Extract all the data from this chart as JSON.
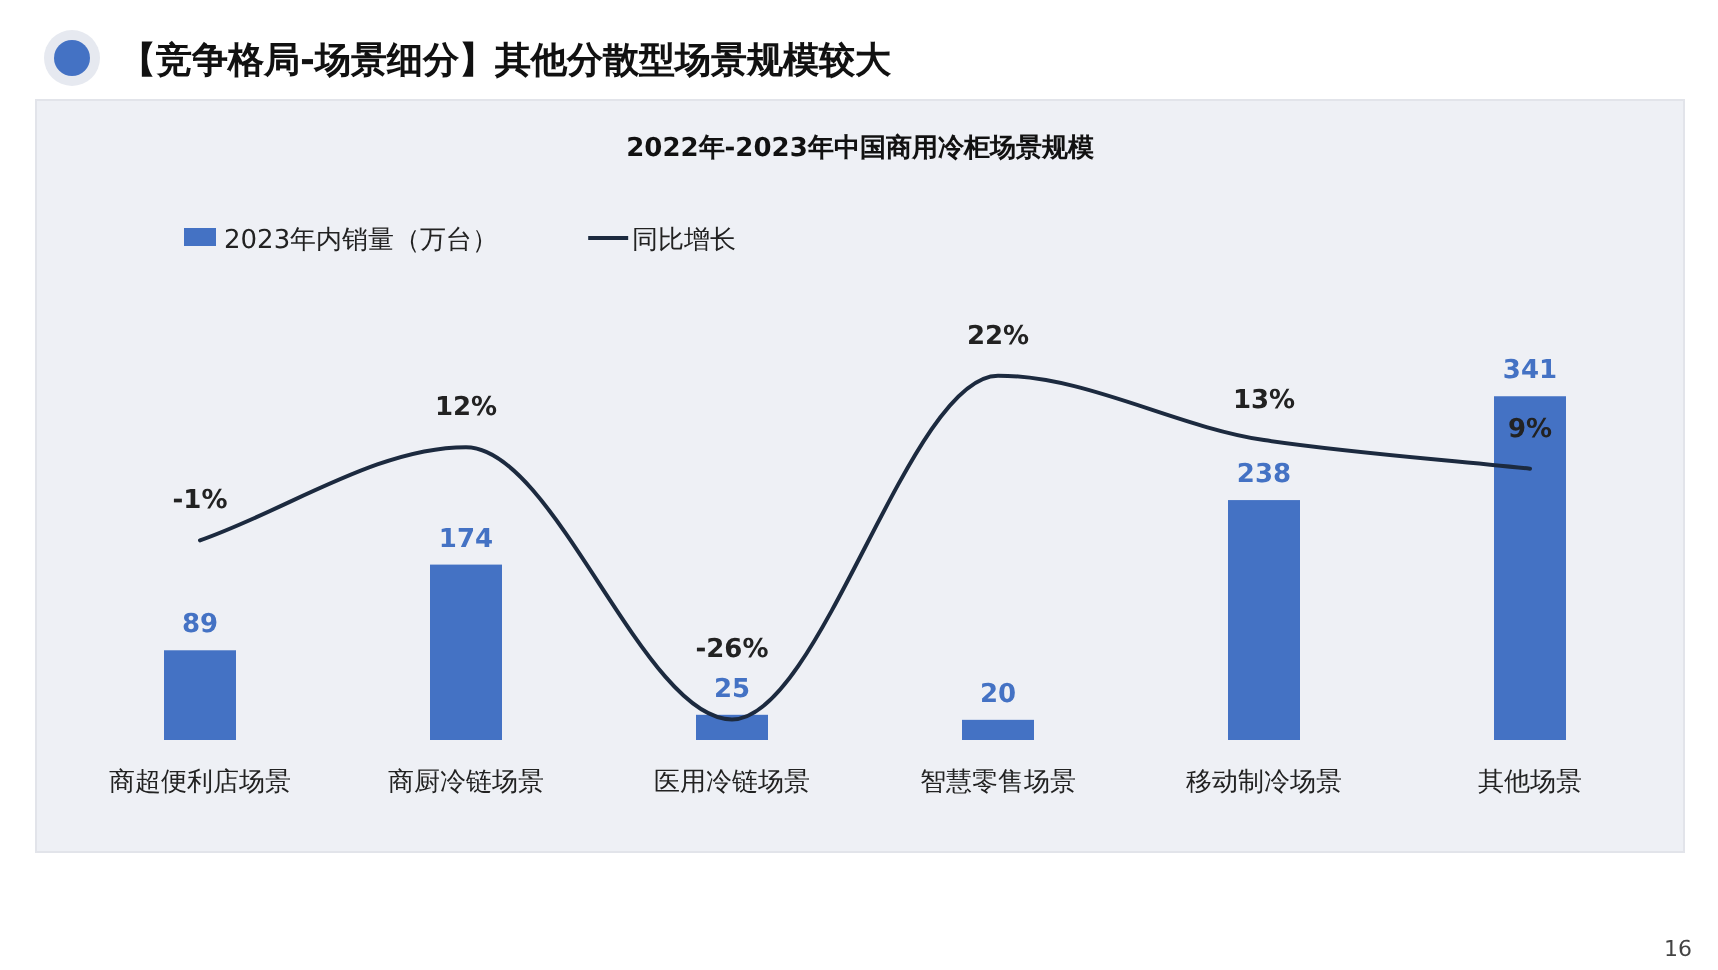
{
  "chart_data": {
    "type": "bar",
    "title": "【竞争格局-场景细分】其他分散型场景规模较大",
    "subtitle": "2022年-2023年中国商用冷柜场景规模",
    "categories": [
      "商超便利店场景",
      "商厨冷链场景",
      "医用冷链场景",
      "智慧零售场景",
      "移动制冷场景",
      "其他场景"
    ],
    "series": [
      {
        "name": "2023年内销量（万台）",
        "color": "#4472c4",
        "values": [
          89,
          174,
          25,
          20,
          238,
          341
        ]
      },
      {
        "name": "同比增长",
        "type": "line",
        "axis": "y2",
        "color": "#1c2a3f",
        "values": [
          -1,
          12,
          -26,
          22,
          13,
          9
        ],
        "value_labels": [
          "-1%",
          "12%",
          "-26%",
          "22%",
          "13%",
          "9%"
        ]
      }
    ],
    "data_labels": true,
    "legend": "top left",
    "tick_labels": "x",
    "marker": "none",
    "line_style": "solid",
    "annotations": [
      "16"
    ]
  }
}
